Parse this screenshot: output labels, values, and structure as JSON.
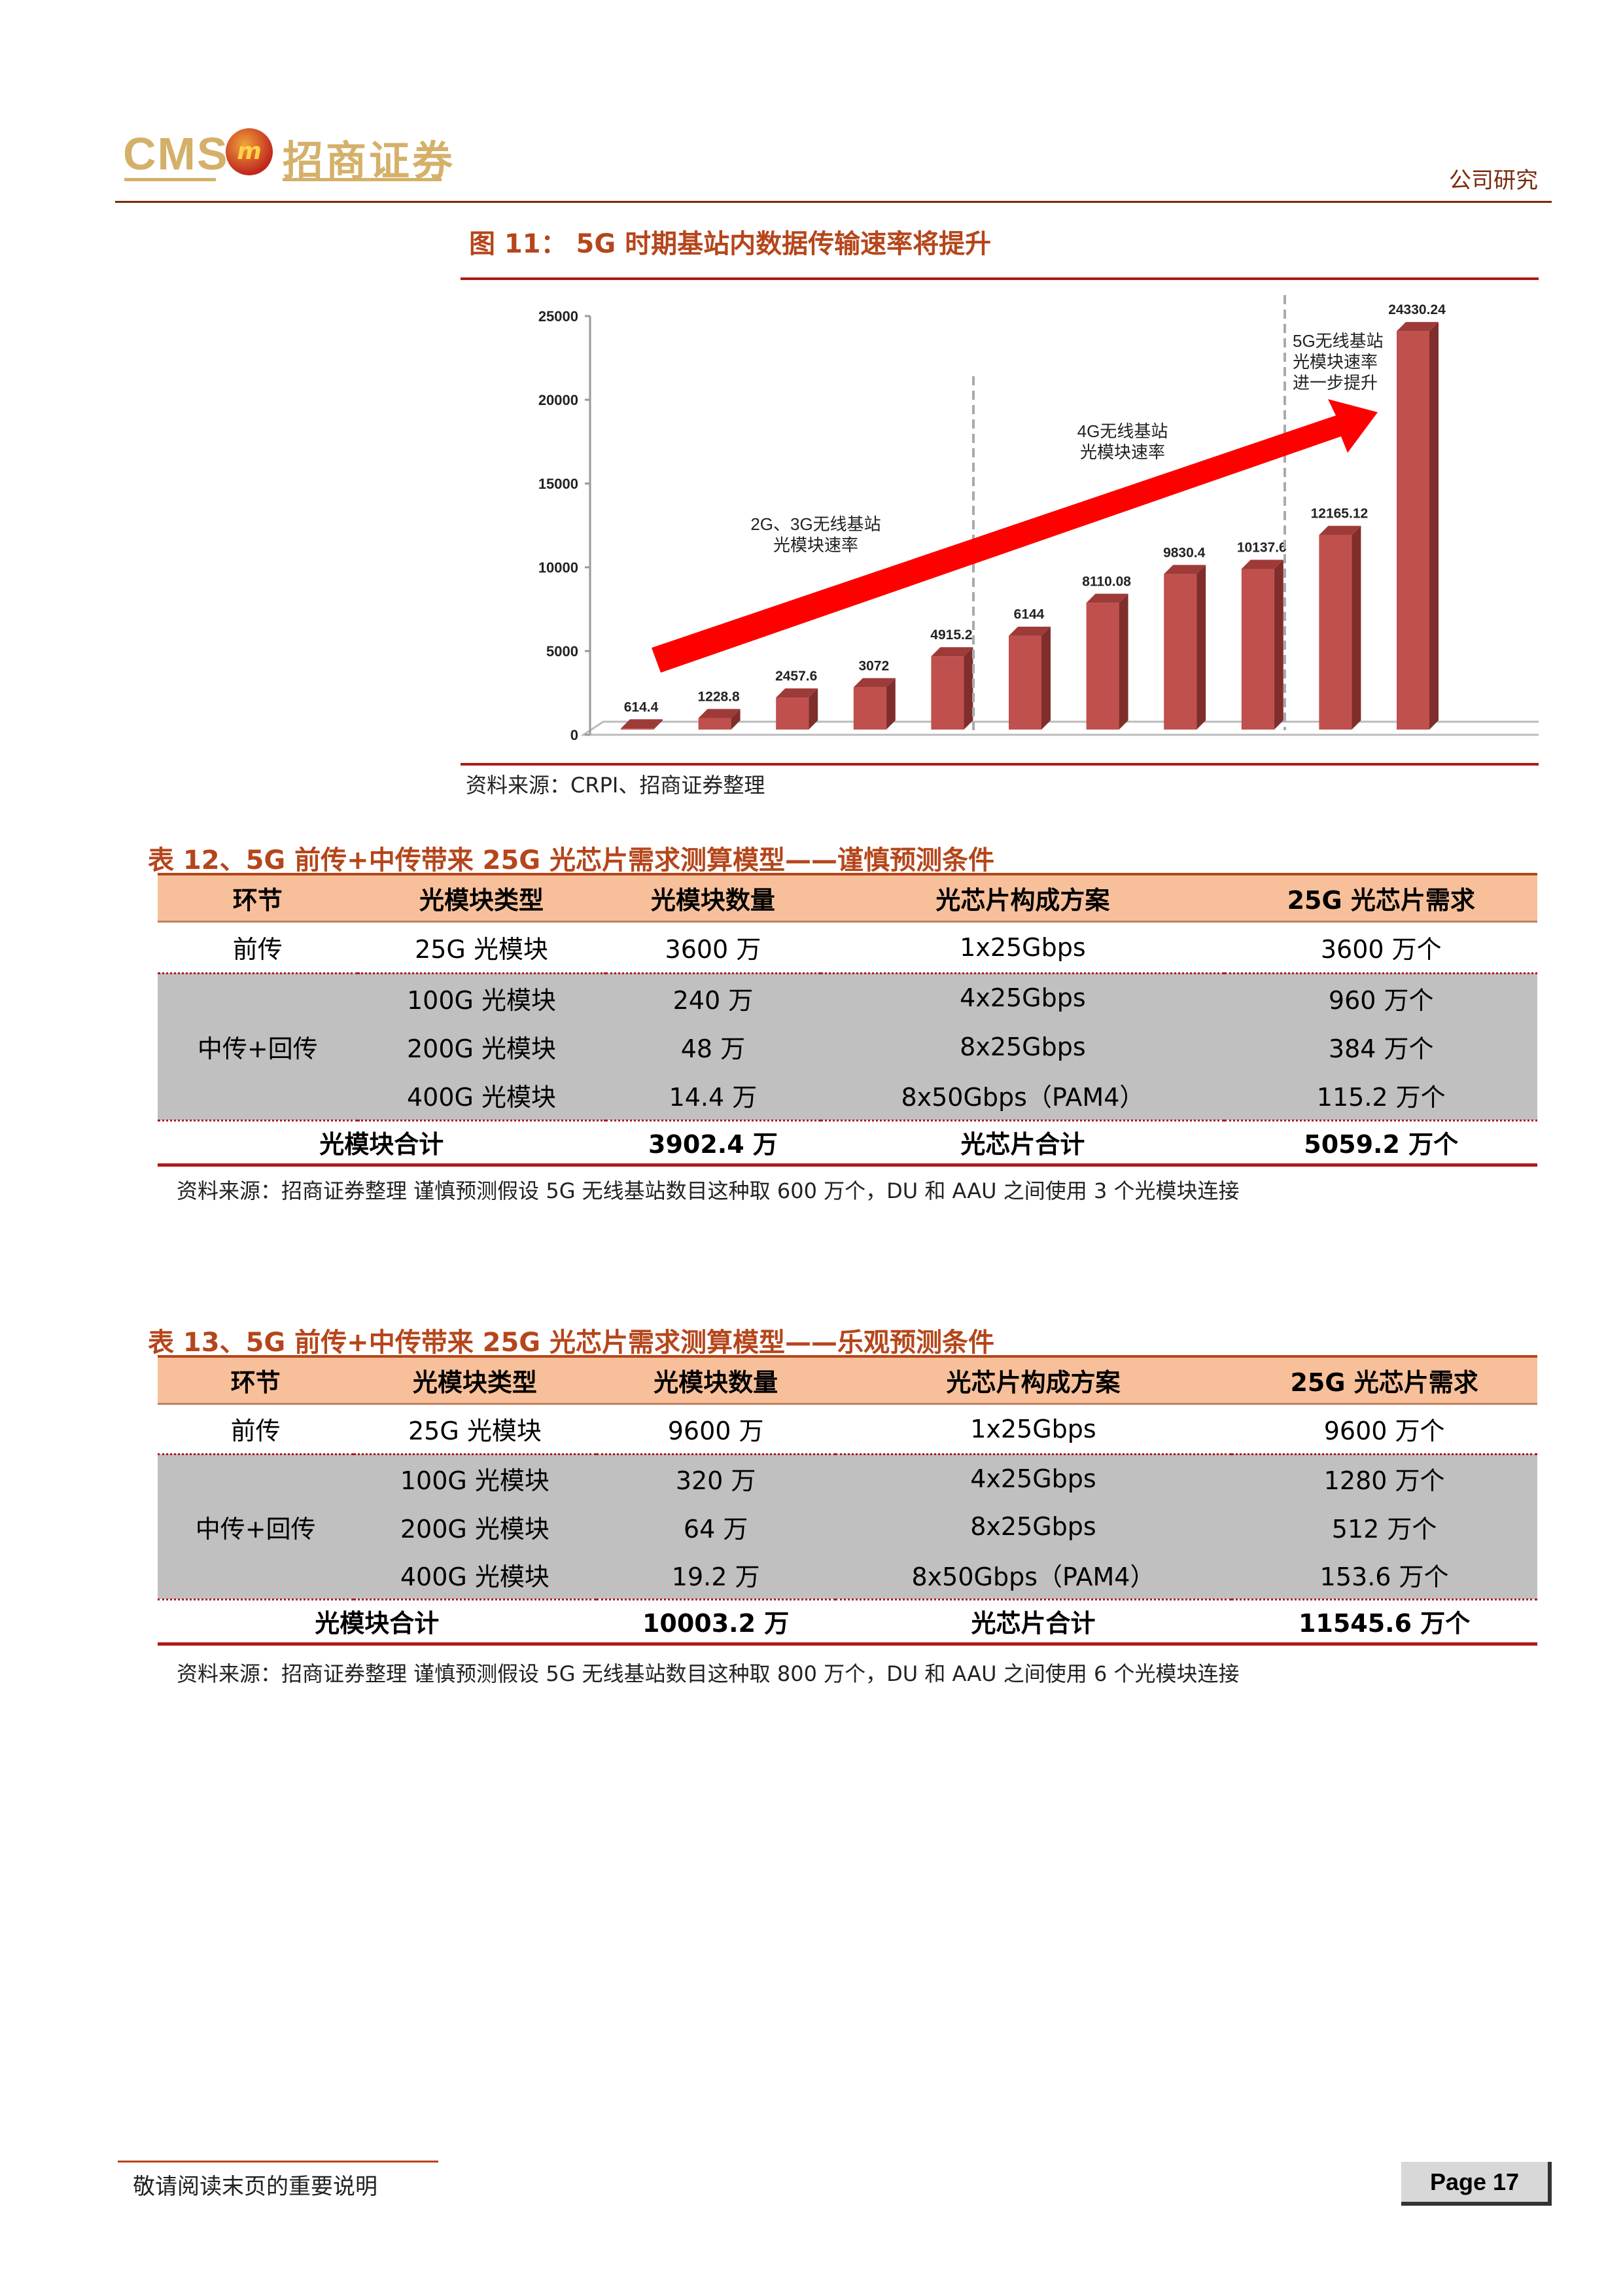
{
  "header": {
    "logo_text": "CMS",
    "logo_cn": "招商证券",
    "section": "公司研究"
  },
  "figure": {
    "title": "图 11：  5G 时期基站内数据传输速率将提升",
    "source": "资料来源：CRPI、招商证券整理",
    "annotations": [
      "2G、3G无线基站",
      "光模块速率",
      "4G无线基站",
      "光模块速率",
      "5G无线基站",
      "光模块速率",
      "进一步提升"
    ]
  },
  "chart_data": {
    "type": "bar",
    "values": [
      614.4,
      1228.8,
      2457.6,
      3072,
      4915.2,
      6144,
      8110.08,
      9830.4,
      10137.6,
      12165.12,
      24330.24
    ],
    "data_labels": [
      "614.4",
      "1228.8",
      "2457.6",
      "3072",
      "4915.2",
      "6144",
      "8110.08",
      "9830.4",
      "10137.6",
      "12165.12",
      "24330.24"
    ],
    "yticks": [
      "0",
      "5000",
      "10000",
      "15000",
      "20000",
      "25000"
    ],
    "ylim": [
      0,
      25000
    ],
    "bar_color": "#c0504d",
    "arrow_color": "#ff0000"
  },
  "table12": {
    "title": "表 12、5G 前传+中传带来 25G 光芯片需求测算模型——谨慎预测条件",
    "headers": [
      "环节",
      "光模块类型",
      "光模块数量",
      "光芯片构成方案",
      "25G 光芯片需求"
    ],
    "rows": [
      [
        "前传",
        "25G 光模块",
        "3600 万",
        "1x25Gbps",
        "3600 万个"
      ],
      [
        "中传+回传",
        "100G 光模块",
        "240 万",
        "4x25Gbps",
        "960 万个"
      ],
      [
        "",
        "200G 光模块",
        "48 万",
        "8x25Gbps",
        "384 万个"
      ],
      [
        "",
        "400G 光模块",
        "14.4 万",
        "8x50Gbps（PAM4）",
        "115.2 万个"
      ]
    ],
    "total": [
      "光模块合计",
      "3902.4 万",
      "光芯片合计",
      "5059.2 万个"
    ],
    "source": "资料来源：招商证券整理  谨慎预测假设 5G 无线基站数目这种取 600 万个，DU 和 AAU 之间使用 3 个光模块连接"
  },
  "table13": {
    "title": "表 13、5G 前传+中传带来 25G 光芯片需求测算模型——乐观预测条件",
    "headers": [
      "环节",
      "光模块类型",
      "光模块数量",
      "光芯片构成方案",
      "25G 光芯片需求"
    ],
    "rows": [
      [
        "前传",
        "25G 光模块",
        "9600 万",
        "1x25Gbps",
        "9600 万个"
      ],
      [
        "中传+回传",
        "100G 光模块",
        "320 万",
        "4x25Gbps",
        "1280 万个"
      ],
      [
        "",
        "200G 光模块",
        "64 万",
        "8x25Gbps",
        "512 万个"
      ],
      [
        "",
        "400G 光模块",
        "19.2 万",
        "8x50Gbps（PAM4）",
        "153.6 万个"
      ]
    ],
    "total": [
      "光模块合计",
      "10003.2 万",
      "光芯片合计",
      "11545.6 万个"
    ],
    "source": "资料来源：招商证券整理  谨慎预测假设 5G 无线基站数目这种取 800 万个，DU 和 AAU 之间使用 6 个光模块连接"
  },
  "footer": {
    "note": "敬请阅读末页的重要说明",
    "page": "Page 17"
  }
}
